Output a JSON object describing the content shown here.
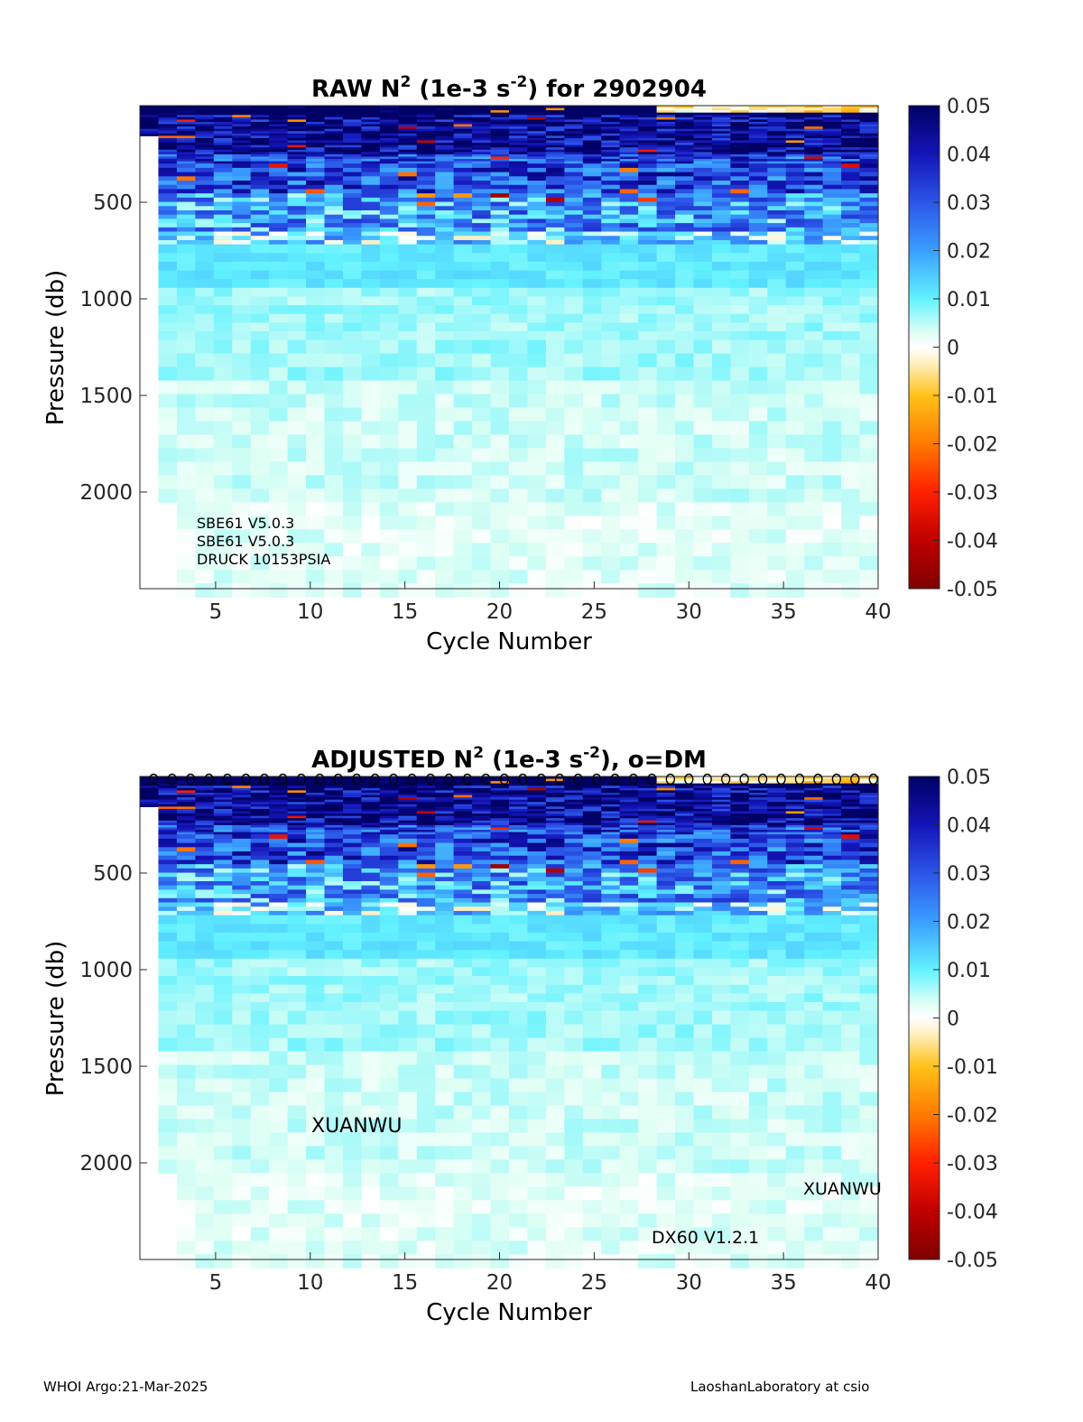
{
  "chart_data": [
    {
      "type": "heatmap",
      "title": {
        "pre": "RAW N",
        "sup1": "2",
        "mid": " (1e-3 s",
        "sup2": "-2",
        "post": ") for 2902904"
      },
      "xlabel": "Cycle Number",
      "ylabel": "Pressure (db)",
      "xlim": [
        1,
        40
      ],
      "ylim": [
        2500,
        0
      ],
      "x_ticks": [
        5,
        10,
        15,
        20,
        25,
        30,
        35,
        40
      ],
      "y_ticks": [
        500,
        1000,
        1500,
        2000
      ],
      "colorbar": {
        "min": -0.05,
        "max": 0.05,
        "ticks": [
          0.05,
          0.04,
          0.03,
          0.02,
          0.01,
          0,
          -0.01,
          -0.02,
          -0.03,
          -0.04,
          -0.05
        ]
      },
      "cycles": [
        1,
        40
      ],
      "missing": [
        {
          "cycle": 1,
          "below_db": 150
        },
        {
          "cycle": 2,
          "below_db": 2000
        }
      ],
      "approx_profile": [
        {
          "pressure_db": 50,
          "n2": 0.05
        },
        {
          "pressure_db": 200,
          "n2": 0.04
        },
        {
          "pressure_db": 400,
          "n2": 0.025
        },
        {
          "pressure_db": 600,
          "n2": 0.015
        },
        {
          "pressure_db": 900,
          "n2": 0.01
        },
        {
          "pressure_db": 1500,
          "n2": 0.005
        },
        {
          "pressure_db": 2400,
          "n2": 0.002
        }
      ],
      "annotations": [
        "SBE61 V5.0.3",
        "SBE61 V5.0.3",
        "DRUCK 10153PSIA"
      ]
    },
    {
      "type": "heatmap",
      "title": {
        "pre": "ADJUSTED N",
        "sup1": "2",
        "mid": " (1e-3 s",
        "sup2": "-2",
        "post": "), o=DM"
      },
      "xlabel": "Cycle Number",
      "ylabel": "Pressure (db)",
      "xlim": [
        1,
        40
      ],
      "ylim": [
        2500,
        0
      ],
      "x_ticks": [
        5,
        10,
        15,
        20,
        25,
        30,
        35,
        40
      ],
      "y_ticks": [
        500,
        1000,
        1500,
        2000
      ],
      "colorbar": {
        "min": -0.05,
        "max": 0.05,
        "ticks": [
          0.05,
          0.04,
          0.03,
          0.02,
          0.01,
          0,
          -0.01,
          -0.02,
          -0.03,
          -0.04,
          -0.05
        ]
      },
      "cycles": [
        1,
        40
      ],
      "dm_marker": "o",
      "dm_cycles": [
        1,
        40
      ],
      "missing": [
        {
          "cycle": 1,
          "below_db": 150
        },
        {
          "cycle": 2,
          "below_db": 2000
        }
      ],
      "annotations": [
        "XUANWU",
        "XUANWU",
        "DX60 V1.2.1"
      ]
    }
  ],
  "footer": {
    "left": "WHOI Argo:21-Mar-2025",
    "right": "LaoshanLaboratory at csio"
  }
}
